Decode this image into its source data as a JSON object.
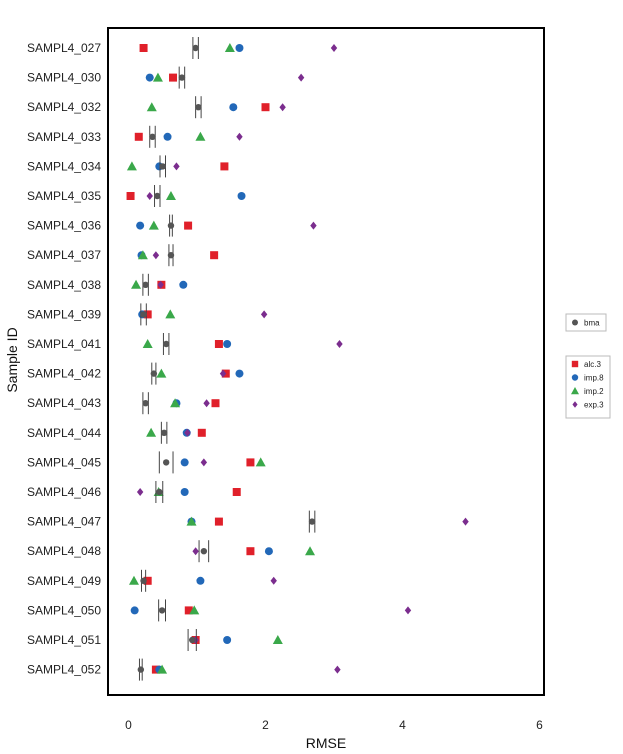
{
  "chart_data": {
    "type": "scatter",
    "title": "",
    "xlabel": "RMSE",
    "ylabel": "Sample ID",
    "xlim": [
      -0.15,
      6.15
    ],
    "xticks": [
      0,
      2,
      4,
      6
    ],
    "grid": false,
    "legend_position": "right",
    "categories": [
      "SAMPL4_027",
      "SAMPL4_030",
      "SAMPL4_032",
      "SAMPL4_033",
      "SAMPL4_034",
      "SAMPL4_035",
      "SAMPL4_036",
      "SAMPL4_037",
      "SAMPL4_038",
      "SAMPL4_039",
      "SAMPL4_041",
      "SAMPL4_042",
      "SAMPL4_043",
      "SAMPL4_044",
      "SAMPL4_045",
      "SAMPL4_046",
      "SAMPL4_047",
      "SAMPL4_048",
      "SAMPL4_049",
      "SAMPL4_050",
      "SAMPL4_051",
      "SAMPL4_052"
    ],
    "bma": {
      "name": "bma",
      "color": "#555555",
      "values": [
        0.98,
        0.78,
        1.02,
        0.35,
        0.5,
        0.42,
        0.62,
        0.62,
        0.25,
        0.22,
        0.55,
        0.37,
        0.25,
        0.52,
        0.55,
        0.45,
        2.68,
        1.1,
        0.22,
        0.49,
        0.93,
        0.18
      ],
      "errors": [
        0.04,
        0.04,
        0.04,
        0.04,
        0.04,
        0.04,
        0.02,
        0.03,
        0.04,
        0.04,
        0.04,
        0.03,
        0.04,
        0.04,
        0.1,
        0.05,
        0.04,
        0.07,
        0.03,
        0.05,
        0.06,
        0.02
      ]
    },
    "series": [
      {
        "name": "alc.3",
        "marker": "square",
        "color": "#e0202a",
        "values": [
          0.22,
          0.65,
          2.0,
          0.15,
          1.4,
          0.03,
          0.87,
          1.25,
          0.48,
          0.28,
          1.32,
          1.42,
          1.27,
          1.07,
          1.78,
          1.58,
          1.32,
          1.78,
          0.28,
          0.88,
          0.98,
          0.4
        ]
      },
      {
        "name": "imp.8",
        "marker": "circle",
        "color": "#2268b8",
        "values": [
          1.62,
          0.31,
          1.53,
          0.57,
          0.45,
          1.65,
          0.17,
          0.19,
          0.8,
          0.2,
          1.44,
          1.62,
          0.7,
          0.85,
          0.82,
          0.82,
          0.92,
          2.05,
          1.05,
          0.09,
          1.44,
          0.45
        ]
      },
      {
        "name": "imp.2",
        "marker": "triangle",
        "color": "#3aa84a",
        "values": [
          1.48,
          0.43,
          0.34,
          1.05,
          0.05,
          0.62,
          0.37,
          0.21,
          0.11,
          0.61,
          0.28,
          0.48,
          0.68,
          0.33,
          1.93,
          0.44,
          0.92,
          2.65,
          0.08,
          0.96,
          2.18,
          0.49
        ]
      },
      {
        "name": "exp.3",
        "marker": "diamond",
        "color": "#7b2d8e",
        "values": [
          3.0,
          2.52,
          2.25,
          1.62,
          0.7,
          0.31,
          2.7,
          0.4,
          0.47,
          1.98,
          3.08,
          1.38,
          1.14,
          0.86,
          1.1,
          0.17,
          4.92,
          0.98,
          2.12,
          4.08,
          0.98,
          3.05
        ]
      }
    ]
  }
}
